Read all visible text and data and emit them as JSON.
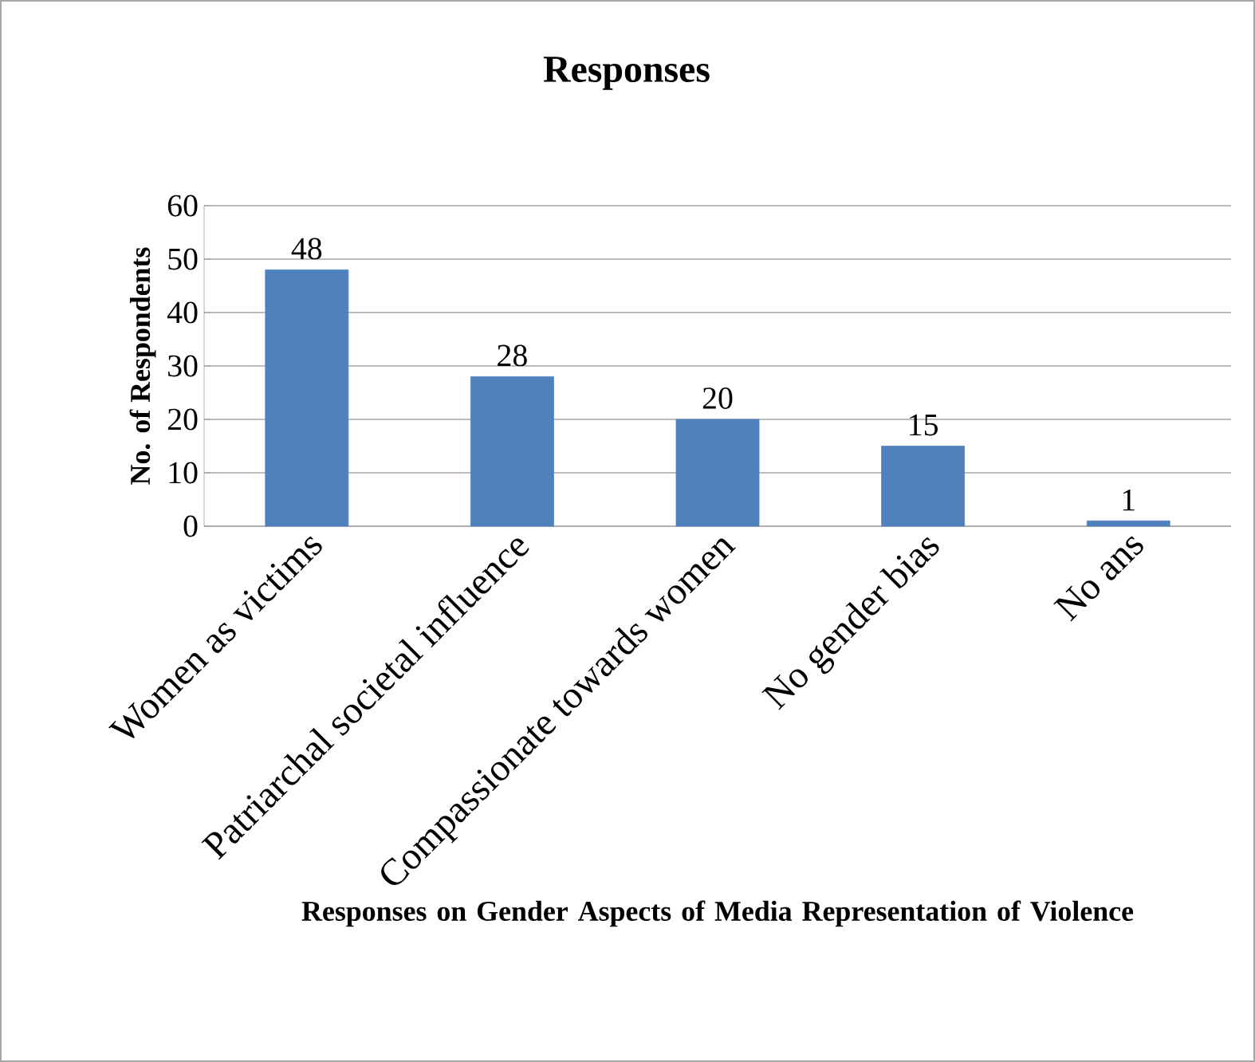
{
  "chart_data": {
    "type": "bar",
    "title": "Responses",
    "xlabel": "Responses on Gender Aspects of Media Representation of Violence",
    "ylabel": "No. of Respondents",
    "categories": [
      "Women as victims",
      "Patriarchal societal influence",
      "Compassionate towards women",
      "No gender bias",
      "No ans"
    ],
    "values": [
      48,
      28,
      20,
      15,
      1
    ],
    "color": "#4f81bd",
    "ylim": [
      0,
      60
    ],
    "yticks": [
      0,
      10,
      20,
      30,
      40,
      50,
      60
    ],
    "grid": "y",
    "data_labels": true
  }
}
